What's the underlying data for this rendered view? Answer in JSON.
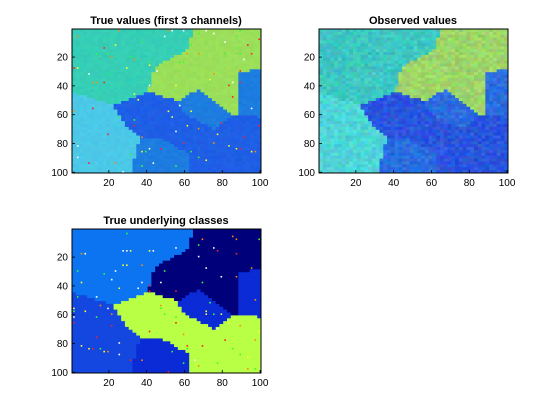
{
  "chart_data": [
    {
      "type": "heatmap",
      "title": "True values (first 3 channels)",
      "xlabel": "",
      "ylabel": "",
      "xlim": [
        0.5,
        100.5
      ],
      "ylim": [
        0.5,
        100.5
      ],
      "x_ticks": [
        20,
        40,
        60,
        80,
        100
      ],
      "y_ticks": [
        20,
        40,
        60,
        80,
        100
      ],
      "y_direction": "down",
      "grid": false,
      "colormap": "jet",
      "noise": 0.02,
      "speckle_density": 0.008,
      "region_colors": [
        "#1e7de0",
        "#36cfb6",
        "#9be05a",
        "#1f5fe6",
        "#4cc9e8"
      ]
    },
    {
      "type": "heatmap",
      "title": "Observed values",
      "xlabel": "",
      "ylabel": "",
      "xlim": [
        0.5,
        100.5
      ],
      "ylim": [
        0.5,
        100.5
      ],
      "x_ticks": [
        20,
        40,
        60,
        80,
        100
      ],
      "y_ticks": [
        20,
        40,
        60,
        80,
        100
      ],
      "y_direction": "down",
      "grid": false,
      "colormap": "jet",
      "noise": 0.07,
      "speckle_density": 0.0,
      "region_colors": [
        "#2a6ee0",
        "#3ec7c2",
        "#9ed66a",
        "#2a55df",
        "#4ed6d8"
      ]
    },
    {
      "type": "heatmap",
      "title": "True underlying classes",
      "xlabel": "",
      "ylabel": "",
      "xlim": [
        0.5,
        100.5
      ],
      "ylim": [
        0.5,
        100.5
      ],
      "x_ticks": [
        20,
        40,
        60,
        80,
        100
      ],
      "y_ticks": [
        20,
        40,
        60,
        80,
        100
      ],
      "y_direction": "down",
      "grid": false,
      "colormap": "jet",
      "noise": 0.0,
      "speckle_density": 0.01,
      "region_colors": [
        "#0a2bd6",
        "#0c74f0",
        "#00007a",
        "#b9ff45",
        "#1446e0"
      ]
    }
  ]
}
